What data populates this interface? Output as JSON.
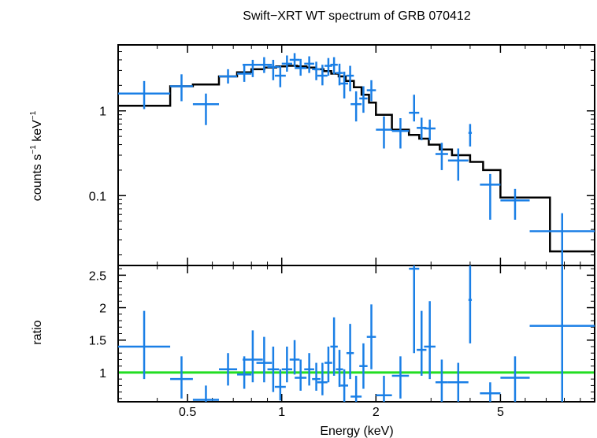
{
  "chart_data": [
    {
      "type": "scatter",
      "panel": "spectrum",
      "title": "Swift−XRT WT spectrum of GRB 070412",
      "xlabel": "",
      "ylabel_main": "counts s",
      "ylabel_sup1": "−1",
      "ylabel_mid": " keV",
      "ylabel_sup2": "−1",
      "x_scale": "log",
      "y_scale": "log",
      "xlim": [
        0.3,
        10
      ],
      "ylim": [
        0.015,
        6
      ],
      "y_ticks": [
        {
          "value": 1,
          "label": "1"
        },
        {
          "value": 0.1,
          "label": "0.1"
        }
      ],
      "colors": {
        "data": "#1a7fe6",
        "model": "#000000"
      },
      "series": [
        {
          "kind": "data",
          "points": [
            {
              "x0": 0.3,
              "x1": 0.44,
              "y": 1.6,
              "ylo": 1.05,
              "yhi": 2.25
            },
            {
              "x0": 0.44,
              "x1": 0.52,
              "y": 1.95,
              "ylo": 1.3,
              "yhi": 2.7
            },
            {
              "x0": 0.52,
              "x1": 0.63,
              "y": 1.2,
              "ylo": 0.68,
              "yhi": 1.6
            },
            {
              "x0": 0.63,
              "x1": 0.72,
              "y": 2.55,
              "ylo": 2.1,
              "yhi": 3.1
            },
            {
              "x0": 0.72,
              "x1": 0.8,
              "y": 2.75,
              "ylo": 2.2,
              "yhi": 3.4
            },
            {
              "x0": 0.75,
              "x1": 0.87,
              "y": 3.5,
              "ylo": 2.5,
              "yhi": 4.0
            },
            {
              "x0": 0.83,
              "x1": 0.93,
              "y": 3.5,
              "ylo": 2.8,
              "yhi": 4.3
            },
            {
              "x0": 0.9,
              "x1": 0.98,
              "y": 3.3,
              "ylo": 2.3,
              "yhi": 4.0
            },
            {
              "x0": 0.95,
              "x1": 1.03,
              "y": 2.6,
              "ylo": 1.9,
              "yhi": 3.4
            },
            {
              "x0": 1.0,
              "x1": 1.08,
              "y": 3.6,
              "ylo": 2.9,
              "yhi": 4.5
            },
            {
              "x0": 1.06,
              "x1": 1.14,
              "y": 4.0,
              "ylo": 3.3,
              "yhi": 4.8
            },
            {
              "x0": 1.1,
              "x1": 1.2,
              "y": 3.2,
              "ylo": 2.6,
              "yhi": 4.1
            },
            {
              "x0": 1.18,
              "x1": 1.27,
              "y": 3.6,
              "ylo": 2.8,
              "yhi": 4.4
            },
            {
              "x0": 1.25,
              "x1": 1.33,
              "y": 3.1,
              "ylo": 2.3,
              "yhi": 3.8
            },
            {
              "x0": 1.3,
              "x1": 1.4,
              "y": 2.6,
              "ylo": 2.0,
              "yhi": 3.5
            },
            {
              "x0": 1.37,
              "x1": 1.45,
              "y": 3.4,
              "ylo": 2.6,
              "yhi": 4.2
            },
            {
              "x0": 1.43,
              "x1": 1.51,
              "y": 3.5,
              "ylo": 2.7,
              "yhi": 4.3
            },
            {
              "x0": 1.49,
              "x1": 1.57,
              "y": 2.8,
              "ylo": 2.0,
              "yhi": 3.6
            },
            {
              "x0": 1.54,
              "x1": 1.63,
              "y": 2.1,
              "ylo": 1.4,
              "yhi": 2.9
            },
            {
              "x0": 1.61,
              "x1": 1.7,
              "y": 2.6,
              "ylo": 1.7,
              "yhi": 3.4
            },
            {
              "x0": 1.66,
              "x1": 1.8,
              "y": 1.2,
              "ylo": 0.75,
              "yhi": 1.7
            },
            {
              "x0": 1.77,
              "x1": 1.88,
              "y": 1.4,
              "ylo": 0.95,
              "yhi": 1.95
            },
            {
              "x0": 1.87,
              "x1": 2.0,
              "y": 1.75,
              "ylo": 1.3,
              "yhi": 2.3
            },
            {
              "x0": 2.0,
              "x1": 2.25,
              "y": 0.6,
              "ylo": 0.36,
              "yhi": 0.86
            },
            {
              "x0": 2.25,
              "x1": 2.55,
              "y": 0.58,
              "ylo": 0.36,
              "yhi": 0.82
            },
            {
              "x0": 2.55,
              "x1": 2.75,
              "y": 0.95,
              "ylo": 0.75,
              "yhi": 1.55
            },
            {
              "x0": 2.7,
              "x1": 2.9,
              "y": 0.63,
              "ylo": 0.45,
              "yhi": 0.83
            },
            {
              "x0": 2.85,
              "x1": 3.1,
              "y": 0.62,
              "ylo": 0.45,
              "yhi": 0.79
            },
            {
              "x0": 3.1,
              "x1": 3.4,
              "y": 0.31,
              "ylo": 0.2,
              "yhi": 0.42
            },
            {
              "x0": 3.4,
              "x1": 3.95,
              "y": 0.26,
              "ylo": 0.15,
              "yhi": 0.36
            },
            {
              "x0": 3.95,
              "x1": 4.05,
              "y": 0.55,
              "ylo": 0.38,
              "yhi": 0.7
            },
            {
              "x0": 4.3,
              "x1": 5.0,
              "y": 0.135,
              "ylo": 0.052,
              "yhi": 0.18
            },
            {
              "x0": 5.0,
              "x1": 6.2,
              "y": 0.088,
              "ylo": 0.052,
              "yhi": 0.12
            },
            {
              "x0": 6.2,
              "x1": 10.0,
              "y": 0.038,
              "ylo": 0.015,
              "yhi": 0.062
            }
          ]
        },
        {
          "kind": "model",
          "steps": [
            {
              "x0": 0.3,
              "x1": 0.44,
              "y": 1.15
            },
            {
              "x0": 0.44,
              "x1": 0.52,
              "y": 1.95
            },
            {
              "x0": 0.52,
              "x1": 0.63,
              "y": 2.05
            },
            {
              "x0": 0.63,
              "x1": 0.72,
              "y": 2.55
            },
            {
              "x0": 0.72,
              "x1": 0.8,
              "y": 2.85
            },
            {
              "x0": 0.8,
              "x1": 0.88,
              "y": 3.1
            },
            {
              "x0": 0.88,
              "x1": 0.96,
              "y": 3.25
            },
            {
              "x0": 0.96,
              "x1": 1.04,
              "y": 3.35
            },
            {
              "x0": 1.04,
              "x1": 1.12,
              "y": 3.4
            },
            {
              "x0": 1.12,
              "x1": 1.2,
              "y": 3.35
            },
            {
              "x0": 1.2,
              "x1": 1.28,
              "y": 3.25
            },
            {
              "x0": 1.28,
              "x1": 1.36,
              "y": 3.1
            },
            {
              "x0": 1.36,
              "x1": 1.44,
              "y": 2.95
            },
            {
              "x0": 1.44,
              "x1": 1.52,
              "y": 2.75
            },
            {
              "x0": 1.52,
              "x1": 1.6,
              "y": 2.55
            },
            {
              "x0": 1.6,
              "x1": 1.7,
              "y": 2.25
            },
            {
              "x0": 1.7,
              "x1": 1.8,
              "y": 1.9
            },
            {
              "x0": 1.8,
              "x1": 1.9,
              "y": 1.55
            },
            {
              "x0": 1.9,
              "x1": 2.0,
              "y": 1.25
            },
            {
              "x0": 2.0,
              "x1": 2.25,
              "y": 0.9
            },
            {
              "x0": 2.25,
              "x1": 2.55,
              "y": 0.6
            },
            {
              "x0": 2.55,
              "x1": 2.75,
              "y": 0.52
            },
            {
              "x0": 2.75,
              "x1": 2.95,
              "y": 0.47
            },
            {
              "x0": 2.95,
              "x1": 3.2,
              "y": 0.4
            },
            {
              "x0": 3.2,
              "x1": 3.5,
              "y": 0.35
            },
            {
              "x0": 3.5,
              "x1": 4.0,
              "y": 0.3
            },
            {
              "x0": 4.0,
              "x1": 4.4,
              "y": 0.25
            },
            {
              "x0": 4.4,
              "x1": 5.0,
              "y": 0.2
            },
            {
              "x0": 5.0,
              "x1": 7.2,
              "y": 0.095
            },
            {
              "x0": 7.2,
              "x1": 10.0,
              "y": 0.022
            }
          ]
        }
      ]
    },
    {
      "type": "scatter",
      "panel": "ratio",
      "xlabel": "Energy (keV)",
      "ylabel": "ratio",
      "x_scale": "log",
      "y_scale": "linear",
      "xlim": [
        0.3,
        10
      ],
      "ylim": [
        0.55,
        2.65
      ],
      "x_ticks": [
        {
          "value": 0.5,
          "label": "0.5"
        },
        {
          "value": 1,
          "label": "1"
        },
        {
          "value": 2,
          "label": "2"
        },
        {
          "value": 5,
          "label": "5"
        }
      ],
      "y_ticks": [
        {
          "value": 1,
          "label": "1"
        },
        {
          "value": 1.5,
          "label": "1.5"
        },
        {
          "value": 2,
          "label": "2"
        },
        {
          "value": 2.5,
          "label": "2.5"
        }
      ],
      "reference_line": {
        "y": 1,
        "color": "#22dd22"
      },
      "colors": {
        "data": "#1a7fe6"
      },
      "series": [
        {
          "kind": "data",
          "points": [
            {
              "x0": 0.3,
              "x1": 0.44,
              "y": 1.4,
              "ylo": 0.9,
              "yhi": 1.95
            },
            {
              "x0": 0.44,
              "x1": 0.52,
              "y": 0.9,
              "ylo": 0.6,
              "yhi": 1.25
            },
            {
              "x0": 0.52,
              "x1": 0.63,
              "y": 0.58,
              "ylo": 0.55,
              "yhi": 0.8
            },
            {
              "x0": 0.63,
              "x1": 0.72,
              "y": 1.05,
              "ylo": 0.8,
              "yhi": 1.3
            },
            {
              "x0": 0.72,
              "x1": 0.8,
              "y": 0.97,
              "ylo": 0.75,
              "yhi": 1.25
            },
            {
              "x0": 0.75,
              "x1": 0.87,
              "y": 1.2,
              "ylo": 0.85,
              "yhi": 1.65
            },
            {
              "x0": 0.83,
              "x1": 0.93,
              "y": 1.15,
              "ylo": 0.85,
              "yhi": 1.55
            },
            {
              "x0": 0.9,
              "x1": 0.98,
              "y": 1.05,
              "ylo": 0.7,
              "yhi": 1.4
            },
            {
              "x0": 0.95,
              "x1": 1.03,
              "y": 0.78,
              "ylo": 0.57,
              "yhi": 1.05
            },
            {
              "x0": 1.0,
              "x1": 1.08,
              "y": 1.05,
              "ylo": 0.85,
              "yhi": 1.4
            },
            {
              "x0": 1.06,
              "x1": 1.14,
              "y": 1.2,
              "ylo": 0.97,
              "yhi": 1.5
            },
            {
              "x0": 1.1,
              "x1": 1.2,
              "y": 0.92,
              "ylo": 0.72,
              "yhi": 1.2
            },
            {
              "x0": 1.18,
              "x1": 1.27,
              "y": 1.05,
              "ylo": 0.8,
              "yhi": 1.3
            },
            {
              "x0": 1.25,
              "x1": 1.33,
              "y": 0.9,
              "ylo": 0.72,
              "yhi": 1.15
            },
            {
              "x0": 1.3,
              "x1": 1.4,
              "y": 0.85,
              "ylo": 0.65,
              "yhi": 1.15
            },
            {
              "x0": 1.37,
              "x1": 1.45,
              "y": 1.15,
              "ylo": 0.85,
              "yhi": 1.4
            },
            {
              "x0": 1.43,
              "x1": 1.51,
              "y": 1.4,
              "ylo": 0.95,
              "yhi": 1.85
            },
            {
              "x0": 1.49,
              "x1": 1.57,
              "y": 1.05,
              "ylo": 0.78,
              "yhi": 1.35
            },
            {
              "x0": 1.54,
              "x1": 1.63,
              "y": 0.8,
              "ylo": 0.55,
              "yhi": 1.05
            },
            {
              "x0": 1.61,
              "x1": 1.7,
              "y": 1.3,
              "ylo": 0.9,
              "yhi": 1.75
            },
            {
              "x0": 1.66,
              "x1": 1.8,
              "y": 0.63,
              "ylo": 0.55,
              "yhi": 0.95
            },
            {
              "x0": 1.77,
              "x1": 1.88,
              "y": 1.1,
              "ylo": 0.75,
              "yhi": 1.45
            },
            {
              "x0": 1.87,
              "x1": 2.0,
              "y": 1.55,
              "ylo": 1.05,
              "yhi": 2.05
            },
            {
              "x0": 2.0,
              "x1": 2.25,
              "y": 0.65,
              "ylo": 0.55,
              "yhi": 0.95
            },
            {
              "x0": 2.25,
              "x1": 2.55,
              "y": 0.95,
              "ylo": 0.6,
              "yhi": 1.25
            },
            {
              "x0": 2.55,
              "x1": 2.75,
              "y": 2.6,
              "ylo": 1.3,
              "yhi": 2.65
            },
            {
              "x0": 2.7,
              "x1": 2.9,
              "y": 1.35,
              "ylo": 0.95,
              "yhi": 1.95
            },
            {
              "x0": 2.85,
              "x1": 3.1,
              "y": 1.4,
              "ylo": 0.9,
              "yhi": 2.1
            },
            {
              "x0": 3.1,
              "x1": 3.4,
              "y": 0.85,
              "ylo": 0.55,
              "yhi": 1.2
            },
            {
              "x0": 3.4,
              "x1": 3.95,
              "y": 0.85,
              "ylo": 0.55,
              "yhi": 1.15
            },
            {
              "x0": 3.95,
              "x1": 4.05,
              "y": 2.12,
              "ylo": 1.45,
              "yhi": 2.65
            },
            {
              "x0": 4.3,
              "x1": 5.0,
              "y": 0.68,
              "ylo": 0.55,
              "yhi": 0.85
            },
            {
              "x0": 5.0,
              "x1": 6.2,
              "y": 0.92,
              "ylo": 0.55,
              "yhi": 1.25
            },
            {
              "x0": 6.2,
              "x1": 10.0,
              "y": 1.72,
              "ylo": 0.55,
              "yhi": 2.65
            }
          ]
        }
      ]
    }
  ]
}
